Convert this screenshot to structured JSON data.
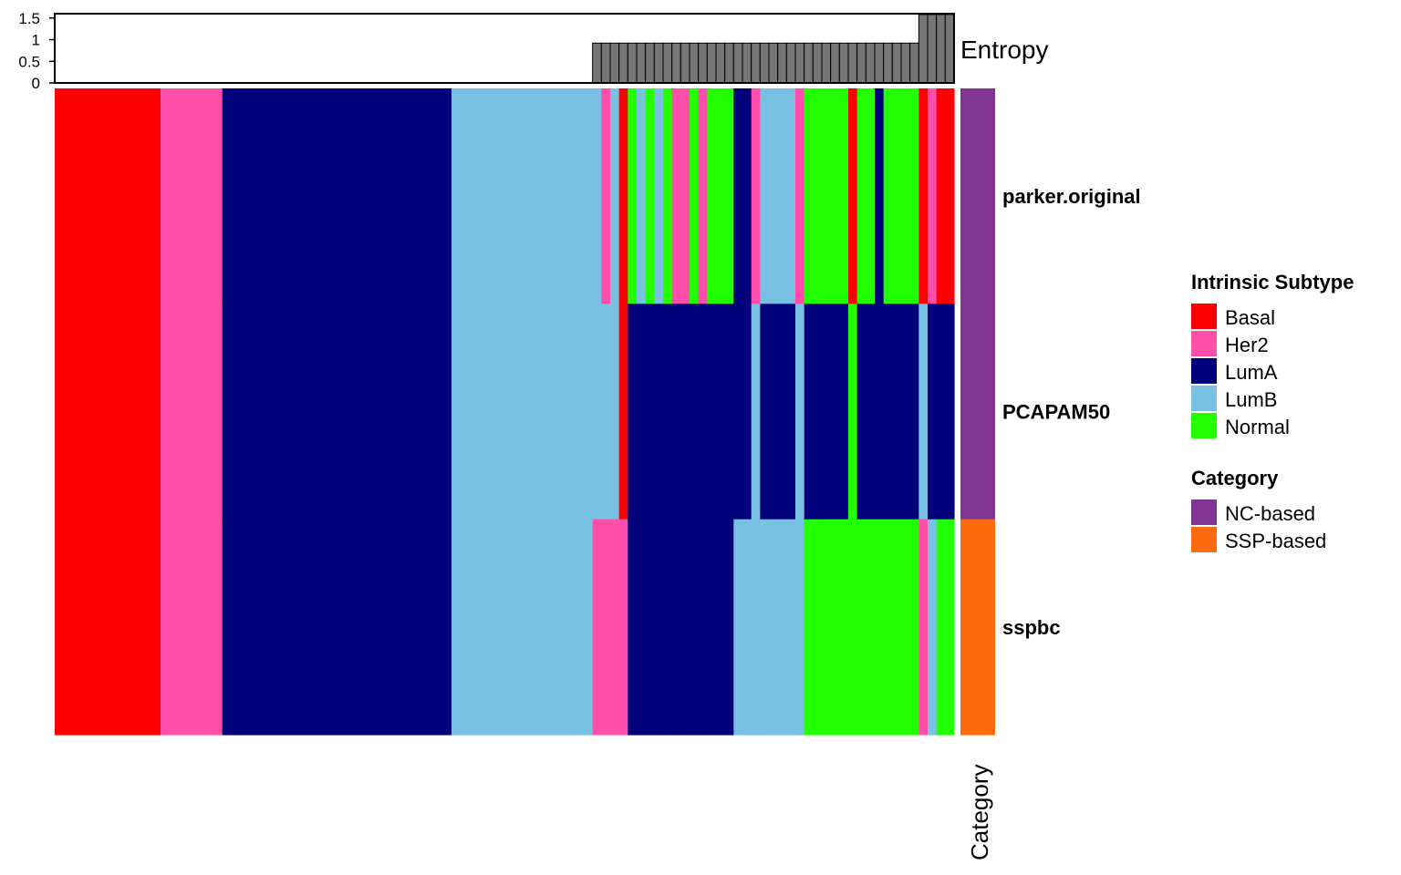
{
  "chart_data": {
    "type": "heatmap",
    "annotation_title": "Entropy",
    "annotation_axis": {
      "ylim": [
        0,
        1.6
      ],
      "ticks": [
        0,
        0.5,
        1,
        1.5
      ],
      "tick_labels": [
        "0",
        "0.5",
        "1",
        "1.5"
      ]
    },
    "rows": [
      "parker.original",
      "PCAPAM50",
      "sspbc"
    ],
    "row_categories": [
      "NC-based",
      "NC-based",
      "SSP-based"
    ],
    "category_axis_label": "Category",
    "n_samples": 102,
    "segments": [
      {
        "w": 12,
        "c": [
          "Basal",
          "Basal",
          "Basal"
        ],
        "e": 0
      },
      {
        "w": 7,
        "c": [
          "Her2",
          "Her2",
          "Her2"
        ],
        "e": 0
      },
      {
        "w": 26,
        "c": [
          "LumA",
          "LumA",
          "LumA"
        ],
        "e": 0
      },
      {
        "w": 16,
        "c": [
          "LumB",
          "LumB",
          "LumB"
        ],
        "e": 0
      },
      {
        "w": 1,
        "c": [
          "LumB",
          "LumB",
          "Her2"
        ],
        "e": 0.92
      },
      {
        "w": 1,
        "c": [
          "Her2",
          "LumB",
          "Her2"
        ],
        "e": 0.92
      },
      {
        "w": 1,
        "c": [
          "LumB",
          "LumB",
          "Her2"
        ],
        "e": 0.92
      },
      {
        "w": 1,
        "c": [
          "Basal",
          "Basal",
          "Her2"
        ],
        "e": 0.92
      },
      {
        "w": 1,
        "c": [
          "Normal",
          "LumA",
          "LumA"
        ],
        "e": 0.92
      },
      {
        "w": 1,
        "c": [
          "LumB",
          "LumA",
          "LumA"
        ],
        "e": 0.92
      },
      {
        "w": 1,
        "c": [
          "Normal",
          "LumA",
          "LumA"
        ],
        "e": 0.92
      },
      {
        "w": 1,
        "c": [
          "LumB",
          "LumA",
          "LumA"
        ],
        "e": 0.92
      },
      {
        "w": 1,
        "c": [
          "Normal",
          "LumA",
          "LumA"
        ],
        "e": 0.92
      },
      {
        "w": 2,
        "c": [
          "Her2",
          "LumA",
          "LumA"
        ],
        "e": 0.92
      },
      {
        "w": 1,
        "c": [
          "Normal",
          "LumA",
          "LumA"
        ],
        "e": 0.92
      },
      {
        "w": 1,
        "c": [
          "Her2",
          "LumA",
          "LumA"
        ],
        "e": 0.92
      },
      {
        "w": 3,
        "c": [
          "Normal",
          "LumA",
          "LumA"
        ],
        "e": 0.92
      },
      {
        "w": 2,
        "c": [
          "LumA",
          "LumA",
          "LumB"
        ],
        "e": 0.92
      },
      {
        "w": 1,
        "c": [
          "Her2",
          "LumB",
          "LumB"
        ],
        "e": 0.92
      },
      {
        "w": 4,
        "c": [
          "LumB",
          "LumA",
          "LumB"
        ],
        "e": 0.92
      },
      {
        "w": 1,
        "c": [
          "Her2",
          "LumB",
          "LumB"
        ],
        "e": 0.92
      },
      {
        "w": 1,
        "c": [
          "Normal",
          "LumA",
          "Normal"
        ],
        "e": 0.92
      },
      {
        "w": 4,
        "c": [
          "Normal",
          "LumA",
          "Normal"
        ],
        "e": 0.92
      },
      {
        "w": 1,
        "c": [
          "Basal",
          "Normal",
          "Normal"
        ],
        "e": 0.92
      },
      {
        "w": 2,
        "c": [
          "Normal",
          "LumA",
          "Normal"
        ],
        "e": 0.92
      },
      {
        "w": 1,
        "c": [
          "LumA",
          "LumA",
          "Normal"
        ],
        "e": 0.92
      },
      {
        "w": 4,
        "c": [
          "Normal",
          "LumA",
          "Normal"
        ],
        "e": 0.92
      },
      {
        "w": 1,
        "c": [
          "Basal",
          "LumB",
          "Her2"
        ],
        "e": 1.58
      },
      {
        "w": 1,
        "c": [
          "Her2",
          "LumA",
          "LumB"
        ],
        "e": 1.58
      },
      {
        "w": 2,
        "c": [
          "Basal",
          "LumA",
          "Normal"
        ],
        "e": 1.58
      }
    ],
    "legends": [
      {
        "title": "Intrinsic Subtype",
        "items": [
          {
            "label": "Basal",
            "color": "#FF0000"
          },
          {
            "label": "Her2",
            "color": "#FF4FAA"
          },
          {
            "label": "LumA",
            "color": "#00007A"
          },
          {
            "label": "LumB",
            "color": "#79C1E3"
          },
          {
            "label": "Normal",
            "color": "#22FF00"
          }
        ]
      },
      {
        "title": "Category",
        "items": [
          {
            "label": "NC-based",
            "color": "#7F3591"
          },
          {
            "label": "SSP-based",
            "color": "#FF6A0F"
          }
        ]
      }
    ],
    "entropy_bar_color": "#767676"
  }
}
